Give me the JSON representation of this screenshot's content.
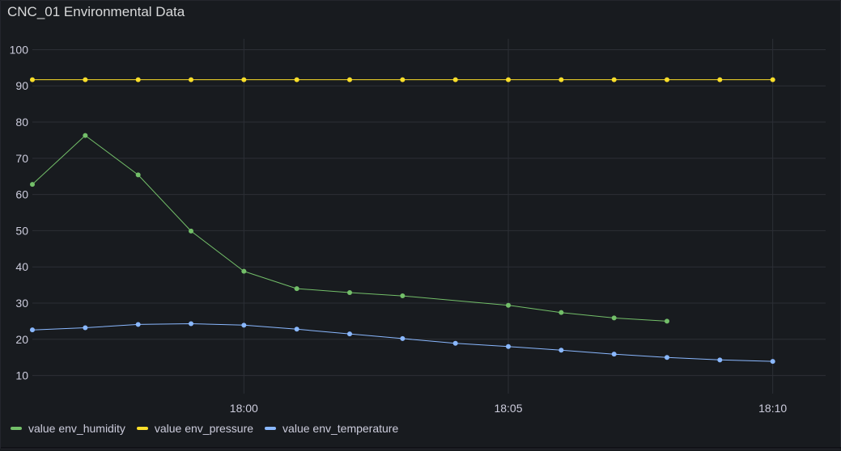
{
  "panel": {
    "title": "CNC_01 Environmental Data"
  },
  "colors": {
    "background": "#181b1f",
    "grid": "#2c2f36",
    "axis_text": "#ccccdc"
  },
  "chart_data": {
    "type": "line",
    "title": "CNC_01 Environmental Data",
    "xlabel": "",
    "ylabel": "",
    "x_type": "time",
    "xlim": [
      "17:56:00",
      "18:11:00"
    ],
    "ylim": [
      5,
      103
    ],
    "y_ticks": [
      10,
      20,
      30,
      40,
      50,
      60,
      70,
      80,
      90,
      100
    ],
    "x_ticks": [
      {
        "time": "18:00:00",
        "label": "18:00"
      },
      {
        "time": "18:05:00",
        "label": "18:05"
      },
      {
        "time": "18:10:00",
        "label": "18:10"
      }
    ],
    "grid": true,
    "legend_position": "bottom-left",
    "series": [
      {
        "name": "value env_humidity",
        "color": "#73bf69",
        "points": [
          {
            "x": "17:56:00",
            "y": 62.8
          },
          {
            "x": "17:57:00",
            "y": 76.3
          },
          {
            "x": "17:58:00",
            "y": 65.4
          },
          {
            "x": "17:59:00",
            "y": 49.9
          },
          {
            "x": "18:00:00",
            "y": 38.8
          },
          {
            "x": "18:01:00",
            "y": 34.0
          },
          {
            "x": "18:02:00",
            "y": 32.9
          },
          {
            "x": "18:03:00",
            "y": 32.0
          },
          {
            "x": "18:05:00",
            "y": 29.4
          },
          {
            "x": "18:06:00",
            "y": 27.4
          },
          {
            "x": "18:07:00",
            "y": 25.9
          },
          {
            "x": "18:08:00",
            "y": 25.0
          }
        ]
      },
      {
        "name": "value env_pressure",
        "color": "#fade2a",
        "points": [
          {
            "x": "17:56:00",
            "y": 91.7
          },
          {
            "x": "17:57:00",
            "y": 91.7
          },
          {
            "x": "17:58:00",
            "y": 91.7
          },
          {
            "x": "17:59:00",
            "y": 91.7
          },
          {
            "x": "18:00:00",
            "y": 91.7
          },
          {
            "x": "18:01:00",
            "y": 91.7
          },
          {
            "x": "18:02:00",
            "y": 91.7
          },
          {
            "x": "18:03:00",
            "y": 91.7
          },
          {
            "x": "18:04:00",
            "y": 91.7
          },
          {
            "x": "18:05:00",
            "y": 91.7
          },
          {
            "x": "18:06:00",
            "y": 91.7
          },
          {
            "x": "18:07:00",
            "y": 91.7
          },
          {
            "x": "18:08:00",
            "y": 91.7
          },
          {
            "x": "18:09:00",
            "y": 91.7
          },
          {
            "x": "18:10:00",
            "y": 91.7
          }
        ]
      },
      {
        "name": "value env_temperature",
        "color": "#8ab8ff",
        "points": [
          {
            "x": "17:56:00",
            "y": 22.6
          },
          {
            "x": "17:57:00",
            "y": 23.2
          },
          {
            "x": "17:58:00",
            "y": 24.1
          },
          {
            "x": "17:59:00",
            "y": 24.3
          },
          {
            "x": "18:00:00",
            "y": 23.9
          },
          {
            "x": "18:01:00",
            "y": 22.8
          },
          {
            "x": "18:02:00",
            "y": 21.5
          },
          {
            "x": "18:03:00",
            "y": 20.2
          },
          {
            "x": "18:04:00",
            "y": 18.9
          },
          {
            "x": "18:05:00",
            "y": 18.0
          },
          {
            "x": "18:06:00",
            "y": 17.0
          },
          {
            "x": "18:07:00",
            "y": 15.9
          },
          {
            "x": "18:08:00",
            "y": 15.0
          },
          {
            "x": "18:09:00",
            "y": 14.3
          },
          {
            "x": "18:10:00",
            "y": 13.9
          }
        ]
      }
    ]
  }
}
